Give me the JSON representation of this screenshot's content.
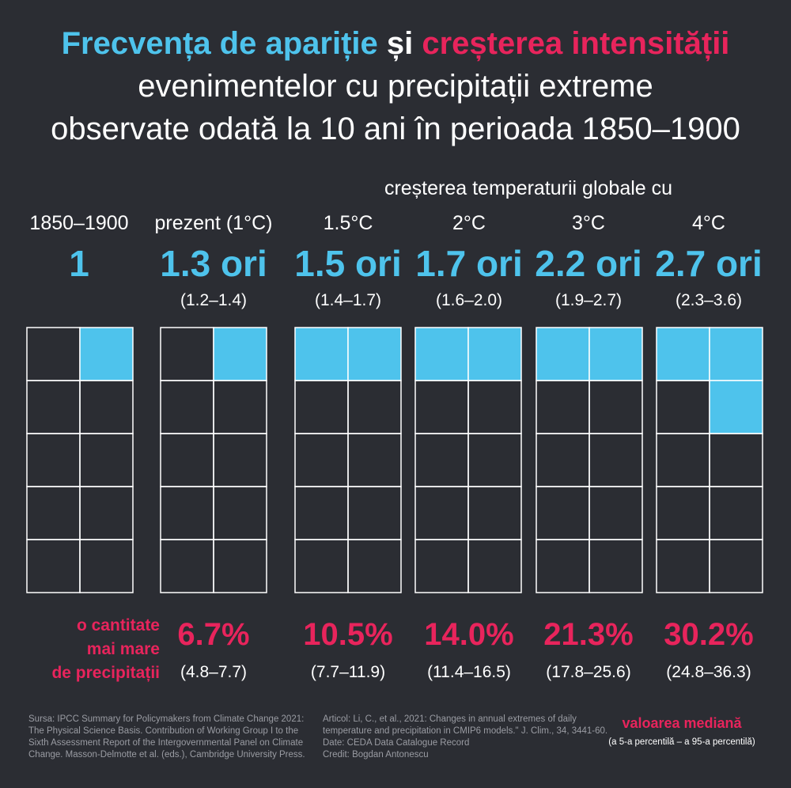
{
  "title": {
    "part1": "Frecvența de apariție",
    "part2": " și ",
    "part3": "creșterea intensității",
    "line2": "evenimentelor cu precipitații extreme",
    "line3": "observate odată la 10 ani în perioada 1850–1900"
  },
  "header_temp": "creșterea temperaturii globale cu",
  "precip_label": [
    "o cantitate",
    "mai mare",
    "de precipitații"
  ],
  "colors": {
    "blue": "#4ec3ec",
    "pink": "#e8245c",
    "background": "#2b2d33"
  },
  "chart_data": {
    "type": "table",
    "grid": {
      "rows": 5,
      "columns": 2,
      "cells_total": 10
    },
    "columns": [
      {
        "label": "1850–1900",
        "frequency": "1",
        "frequency_range": "",
        "filled_cells": 1,
        "precip_increase": "",
        "precip_range": ""
      },
      {
        "label": "prezent (1°C)",
        "frequency": "1.3 ori",
        "frequency_range": "(1.2–1.4)",
        "filled_cells": 1,
        "precip_increase": "6.7%",
        "precip_range": "(4.8–7.7)"
      },
      {
        "label": "1.5°C",
        "frequency": "1.5 ori",
        "frequency_range": "(1.4–1.7)",
        "filled_cells": 2,
        "precip_increase": "10.5%",
        "precip_range": "(7.7–11.9)"
      },
      {
        "label": "2°C",
        "frequency": "1.7 ori",
        "frequency_range": "(1.6–2.0)",
        "filled_cells": 2,
        "precip_increase": "14.0%",
        "precip_range": "(11.4–16.5)"
      },
      {
        "label": "3°C",
        "frequency": "2.2 ori",
        "frequency_range": "(1.9–2.7)",
        "filled_cells": 2,
        "precip_increase": "21.3%",
        "precip_range": "(17.8–25.6)"
      },
      {
        "label": "4°C",
        "frequency": "2.7 ori",
        "frequency_range": "(2.3–3.6)",
        "filled_cells": 3,
        "precip_increase": "30.2%",
        "precip_range": "(24.8–36.3)"
      }
    ]
  },
  "footer": {
    "source": [
      "Sursa: IPCC Summary for Policymakers from Climate Change 2021:",
      "The Physical Science Basis. Contribution of Working Group I to the",
      "Sixth Assessment Report of the Intergovernmental Panel on Climate",
      "Change. Masson-Delmotte et al. (eds.), Cambridge University Press."
    ],
    "article": [
      "Articol:  Li, C., et al., 2021: Changes in annual extremes of daily",
      "temperature and precipitation in CMIP6 models.\" J. Clim., 34, 3441-60.",
      "Date: CEDA Data Catalogue Record",
      "Credit: Bogdan Antonescu"
    ],
    "median": "valoarea mediană",
    "percentiles": "(a 5-a percentilă – a 95-a percentilă)"
  }
}
